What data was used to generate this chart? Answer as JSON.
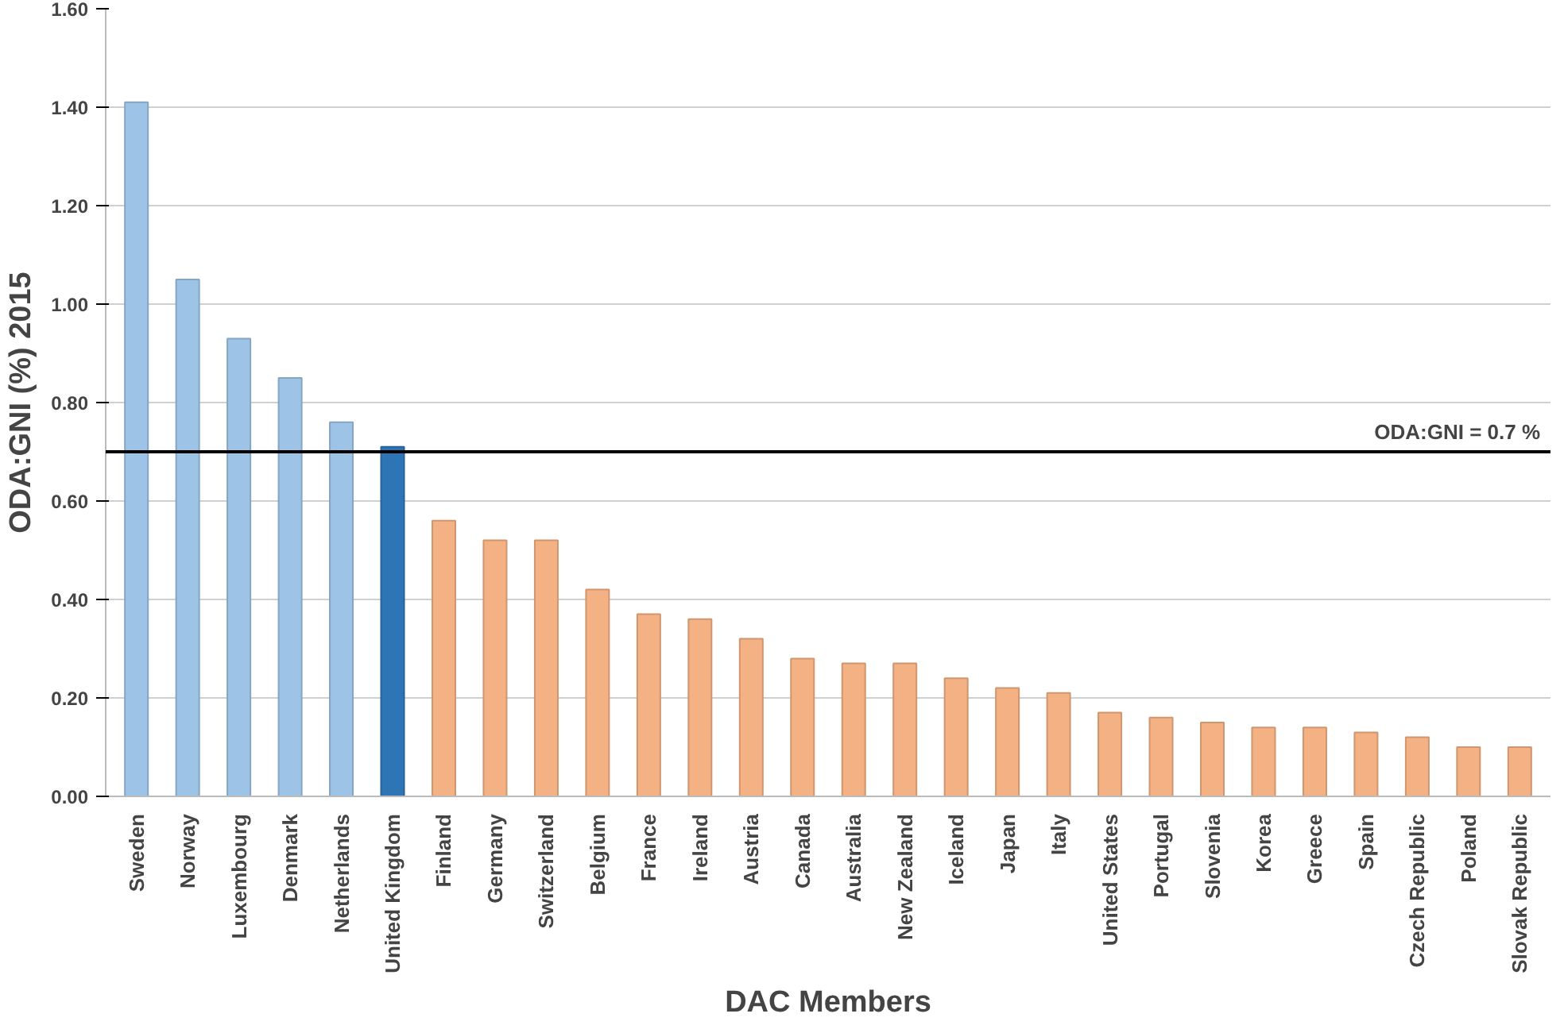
{
  "chart_data": {
    "type": "bar",
    "xlabel": "DAC Members",
    "ylabel": "ODA:GNI (%) 2015",
    "categories": [
      "Sweden",
      "Norway",
      "Luxembourg",
      "Denmark",
      "Netherlands",
      "United Kingdom",
      "Finland",
      "Germany",
      "Switzerland",
      "Belgium",
      "France",
      "Ireland",
      "Austria",
      "Canada",
      "Australia",
      "New Zealand",
      "Iceland",
      "Japan",
      "Italy",
      "United States",
      "Portugal",
      "Slovenia",
      "Korea",
      "Greece",
      "Spain",
      "Czech Republic",
      "Poland",
      "Slovak Republic"
    ],
    "values": [
      1.41,
      1.05,
      0.93,
      0.85,
      0.76,
      0.71,
      0.56,
      0.52,
      0.52,
      0.42,
      0.37,
      0.36,
      0.32,
      0.28,
      0.27,
      0.27,
      0.24,
      0.22,
      0.21,
      0.17,
      0.16,
      0.15,
      0.14,
      0.14,
      0.13,
      0.12,
      0.1,
      0.1
    ],
    "colors": [
      "#9dc3e6",
      "#9dc3e6",
      "#9dc3e6",
      "#9dc3e6",
      "#9dc3e6",
      "#2e75b6",
      "#f4b183",
      "#f4b183",
      "#f4b183",
      "#f4b183",
      "#f4b183",
      "#f4b183",
      "#f4b183",
      "#f4b183",
      "#f4b183",
      "#f4b183",
      "#f4b183",
      "#f4b183",
      "#f4b183",
      "#f4b183",
      "#f4b183",
      "#f4b183",
      "#f4b183",
      "#f4b183",
      "#f4b183",
      "#f4b183",
      "#f4b183",
      "#f4b183"
    ],
    "ylim": [
      0,
      1.6
    ],
    "yticks": [
      {
        "value": 0,
        "label": "0.00"
      },
      {
        "value": 0.2,
        "label": "0.20"
      },
      {
        "value": 0.4,
        "label": "0.40"
      },
      {
        "value": 0.6,
        "label": "0.60"
      },
      {
        "value": 0.8,
        "label": "0.80"
      },
      {
        "value": 1.0,
        "label": "1.00"
      },
      {
        "value": 1.2,
        "label": "1.20"
      },
      {
        "value": 1.4,
        "label": "1.40"
      },
      {
        "value": 1.6,
        "label": "1.60"
      }
    ],
    "grid": "y",
    "ref_lines": [
      {
        "axis": "y",
        "value": 0.7,
        "label": "ODA:GNI = 0.7 %",
        "color": "#000000"
      }
    ]
  }
}
